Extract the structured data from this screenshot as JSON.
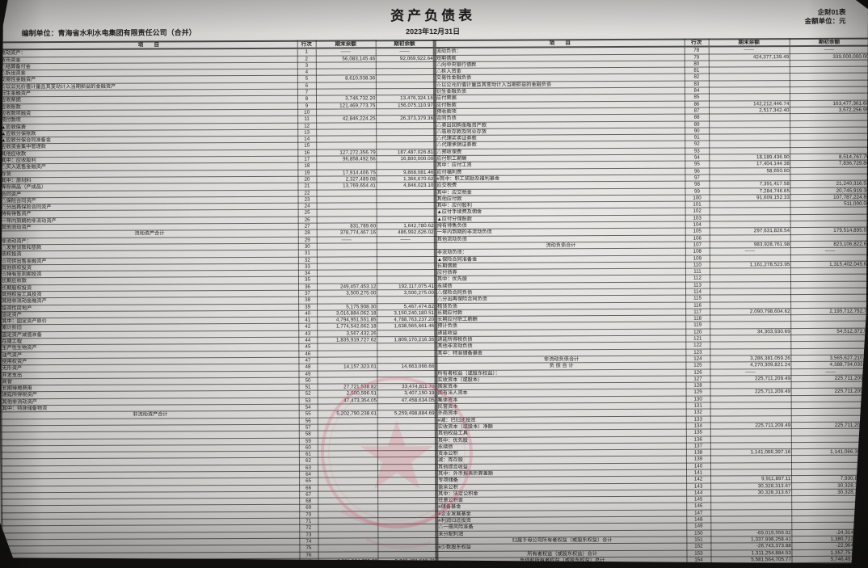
{
  "header": {
    "title": "资产负债表",
    "form_no": "企财01表",
    "unit_note": "金额单位：元",
    "prepared_by": "编制单位：青海省水利水电集团有限责任公司（合并）",
    "report_date": "2023年12月31日"
  },
  "columns": {
    "item": "项　　目",
    "line": "行次",
    "end": "期末余额",
    "begin": "期初余额"
  },
  "seal": {
    "name": "company-seal",
    "color": "#c43a5a"
  },
  "left_rows": [
    {
      "n": "1",
      "t": "流动资产：",
      "i": 0,
      "e": "——",
      "b": "——"
    },
    {
      "n": "2",
      "t": "货币资金",
      "i": 2,
      "e": "56,083,145.46",
      "b": "92,069,922.64"
    },
    {
      "n": "3",
      "t": "△结算备付金",
      "i": 1,
      "e": "",
      "b": ""
    },
    {
      "n": "4",
      "t": "△拆出资金",
      "i": 1,
      "e": "",
      "b": ""
    },
    {
      "n": "5",
      "t": "交易性金融资产",
      "i": 2,
      "e": "8,610,038.36",
      "b": ""
    },
    {
      "n": "6",
      "t": "☆以公允价值计量且其变动计入当期损益的金融资产",
      "i": 1,
      "e": "",
      "b": ""
    },
    {
      "n": "7",
      "t": "衍生金融资产",
      "i": 2,
      "e": "",
      "b": ""
    },
    {
      "n": "8",
      "t": "应收票据",
      "i": 2,
      "e": "3,746,732.20",
      "b": "13,476,324.16"
    },
    {
      "n": "9",
      "t": "应收账款",
      "i": 2,
      "e": "121,469,773.75",
      "b": "156,075,110.97"
    },
    {
      "n": "10",
      "t": "应收款项融资",
      "i": 2,
      "e": "",
      "b": ""
    },
    {
      "n": "11",
      "t": "预付款项",
      "i": 2,
      "e": "42,846,224.25",
      "b": "26,373,379.36"
    },
    {
      "n": "12",
      "t": "▲应收保费",
      "i": 1,
      "e": "",
      "b": ""
    },
    {
      "n": "13",
      "t": "▲应收分保账款",
      "i": 1,
      "e": "",
      "b": ""
    },
    {
      "n": "14",
      "t": "▲应收分保合同准备金",
      "i": 1,
      "e": "",
      "b": ""
    },
    {
      "n": "15",
      "t": "应收资金集中管理款",
      "i": 2,
      "e": "",
      "b": ""
    },
    {
      "n": "16",
      "t": "其他应收款",
      "i": 2,
      "e": "127,272,356.79",
      "b": "187,487,026.81"
    },
    {
      "n": "17",
      "t": "其中：应收股利",
      "i": 3,
      "e": "96,858,492.56",
      "b": "16,800,000.00"
    },
    {
      "n": "18",
      "t": "△买入返售金融资产",
      "i": 1,
      "e": "",
      "b": ""
    },
    {
      "n": "19",
      "t": "存货",
      "i": 2,
      "e": "17,914,406.75",
      "b": "9,868,081.46"
    },
    {
      "n": "20",
      "t": "其中：原材料",
      "i": 3,
      "e": "2,327,489.08",
      "b": "1,366,670.62"
    },
    {
      "n": "21",
      "t": "库存商品（产成品）",
      "i": 4,
      "e": "13,769,654.41",
      "b": "4,846,023.10"
    },
    {
      "n": "22",
      "t": "合同资产",
      "i": 2,
      "e": "",
      "b": ""
    },
    {
      "n": "23",
      "t": "△保险合同资产",
      "i": 1,
      "e": "",
      "b": ""
    },
    {
      "n": "24",
      "t": "△分出再保险合同资产",
      "i": 1,
      "e": "",
      "b": ""
    },
    {
      "n": "25",
      "t": "持有待售资产",
      "i": 2,
      "e": "",
      "b": ""
    },
    {
      "n": "26",
      "t": "一年内到期的非流动资产",
      "i": 2,
      "e": "",
      "b": ""
    },
    {
      "n": "27",
      "t": "其他流动资产",
      "i": 2,
      "e": "831,789.60",
      "b": "1,642,780.62"
    },
    {
      "n": "28",
      "t": "流动资产合计",
      "i": "c",
      "e": "378,774,467.16",
      "b": "486,992,626.02"
    },
    {
      "n": "29",
      "t": "非流动资产：",
      "i": 0,
      "e": "——",
      "b": "——"
    },
    {
      "n": "30",
      "t": "△发放贷款和垫款",
      "i": 1,
      "e": "",
      "b": ""
    },
    {
      "n": "31",
      "t": "债权投资",
      "i": 2,
      "e": "",
      "b": ""
    },
    {
      "n": "32",
      "t": "☆可供出售金融资产",
      "i": 1,
      "e": "",
      "b": ""
    },
    {
      "n": "33",
      "t": "其他债权投资",
      "i": 2,
      "e": "",
      "b": ""
    },
    {
      "n": "34",
      "t": "☆持有至到期投资",
      "i": 1,
      "e": "",
      "b": ""
    },
    {
      "n": "35",
      "t": "长期应收款",
      "i": 2,
      "e": "",
      "b": ""
    },
    {
      "n": "36",
      "t": "长期股权投资",
      "i": 2,
      "e": "249,457,453.12",
      "b": "192,117,075.41"
    },
    {
      "n": "37",
      "t": "其他权益工具投资",
      "i": 2,
      "e": "3,500,275.00",
      "b": "3,500,275.00"
    },
    {
      "n": "38",
      "t": "其他非流动金融资产",
      "i": 2,
      "e": "",
      "b": ""
    },
    {
      "n": "39",
      "t": "投资性房地产",
      "i": 2,
      "e": "5,175,908.30",
      "b": "5,467,474.82"
    },
    {
      "n": "40",
      "t": "固定资产",
      "i": 2,
      "e": "3,016,884,062.18",
      "b": "3,150,240,180.51"
    },
    {
      "n": "41",
      "t": "其中：固定资产原价",
      "i": 3,
      "e": "4,794,951,551.85",
      "b": "4,788,763,237.20"
    },
    {
      "n": "42",
      "t": "累计折旧",
      "i": 4,
      "e": "1,774,542,662.18",
      "b": "1,638,565,661.46"
    },
    {
      "n": "43",
      "t": "固定资产减值准备",
      "i": 4,
      "e": "3,567,432.26",
      "b": ""
    },
    {
      "n": "44",
      "t": "在建工程",
      "i": 2,
      "e": "1,835,919,727.62",
      "b": "1,809,170,216.35"
    },
    {
      "n": "45",
      "t": "生产性生物资产",
      "i": 2,
      "e": "",
      "b": ""
    },
    {
      "n": "46",
      "t": "油气资产",
      "i": 2,
      "e": "",
      "b": ""
    },
    {
      "n": "47",
      "t": "使用权资产",
      "i": 2,
      "e": "",
      "b": ""
    },
    {
      "n": "48",
      "t": "无形资产",
      "i": 2,
      "e": "14,157,323.01",
      "b": "14,663,066.66"
    },
    {
      "n": "49",
      "t": "开发支出",
      "i": 2,
      "e": "",
      "b": ""
    },
    {
      "n": "50",
      "t": "商誉",
      "i": 2,
      "e": "",
      "b": ""
    },
    {
      "n": "51",
      "t": "长期待摊费用",
      "i": 2,
      "e": "27,721,538.82",
      "b": "33,474,811.70"
    },
    {
      "n": "52",
      "t": "递延所得税资产",
      "i": 2,
      "e": "2,500,596.51",
      "b": "3,407,150.19"
    },
    {
      "n": "53",
      "t": "其他非流动资产",
      "i": 2,
      "e": "47,473,354.05",
      "b": "47,458,634.05"
    },
    {
      "n": "54",
      "t": "其中：特准储备物资",
      "i": 3,
      "e": "",
      "b": ""
    },
    {
      "n": "55",
      "t": "非流动资产合计",
      "i": "c",
      "e": "5,202,790,238.61",
      "b": "5,259,498,884.69"
    },
    {
      "n": "56",
      "t": "",
      "i": 2,
      "e": "",
      "b": ""
    },
    {
      "n": "57",
      "t": "",
      "i": 2,
      "e": "",
      "b": ""
    },
    {
      "n": "58",
      "t": "",
      "i": 2,
      "e": "",
      "b": ""
    },
    {
      "n": "59",
      "t": "",
      "i": 2,
      "e": "",
      "b": ""
    },
    {
      "n": "60",
      "t": "",
      "i": 2,
      "e": "",
      "b": ""
    },
    {
      "n": "61",
      "t": "",
      "i": 2,
      "e": "",
      "b": ""
    },
    {
      "n": "62",
      "t": "",
      "i": 2,
      "e": "",
      "b": ""
    },
    {
      "n": "63",
      "t": "",
      "i": 2,
      "e": "",
      "b": ""
    },
    {
      "n": "64",
      "t": "",
      "i": 2,
      "e": "",
      "b": ""
    },
    {
      "n": "65",
      "t": "",
      "i": 2,
      "e": "",
      "b": ""
    },
    {
      "n": "66",
      "t": "",
      "i": 2,
      "e": "",
      "b": ""
    },
    {
      "n": "67",
      "t": "",
      "i": 2,
      "e": "",
      "b": ""
    },
    {
      "n": "68",
      "t": "",
      "i": 2,
      "e": "",
      "b": ""
    },
    {
      "n": "69",
      "t": "",
      "i": 2,
      "e": "",
      "b": ""
    },
    {
      "n": "70",
      "t": "",
      "i": 2,
      "e": "",
      "b": ""
    },
    {
      "n": "71",
      "t": "",
      "i": 2,
      "e": "",
      "b": ""
    },
    {
      "n": "72",
      "t": "",
      "i": 2,
      "e": "",
      "b": ""
    },
    {
      "n": "73",
      "t": "",
      "i": 2,
      "e": "",
      "b": ""
    },
    {
      "n": "74",
      "t": "",
      "i": 2,
      "e": "",
      "b": ""
    },
    {
      "n": "75",
      "t": "",
      "i": 2,
      "e": "",
      "b": ""
    },
    {
      "n": "76",
      "t": "",
      "i": 2,
      "e": "",
      "b": ""
    },
    {
      "n": "77",
      "t": "资 产 总 计",
      "i": "c",
      "e": "5,581,564,705.77",
      "b": "5,746,491,510.71"
    }
  ],
  "right_rows": [
    {
      "n": "78",
      "t": "流动负债：",
      "i": 0,
      "e": "——",
      "b": "——"
    },
    {
      "n": "79",
      "t": "短期借款",
      "i": 2,
      "e": "424,377,139.49",
      "b": "339,000,000.00"
    },
    {
      "n": "80",
      "t": "△向中央银行借款",
      "i": 1,
      "e": "",
      "b": ""
    },
    {
      "n": "81",
      "t": "△拆入资金",
      "i": 1,
      "e": "",
      "b": ""
    },
    {
      "n": "82",
      "t": "交易性金融负债",
      "i": 2,
      "e": "",
      "b": ""
    },
    {
      "n": "83",
      "t": "☆以公允价值计量且其变动计入当期损益的金融负债",
      "i": 1,
      "e": "",
      "b": ""
    },
    {
      "n": "84",
      "t": "衍生金融负债",
      "i": 2,
      "e": "",
      "b": ""
    },
    {
      "n": "85",
      "t": "应付票据",
      "i": 2,
      "e": "",
      "b": ""
    },
    {
      "n": "86",
      "t": "应付账款",
      "i": 2,
      "e": "142,212,446.74",
      "b": "163,477,361.60"
    },
    {
      "n": "87",
      "t": "预收款项",
      "i": 2,
      "e": "2,517,342.40",
      "b": "3,572,256.95"
    },
    {
      "n": "88",
      "t": "合同负债",
      "i": 2,
      "e": "",
      "b": ""
    },
    {
      "n": "89",
      "t": "△卖出回购金融资产款",
      "i": 1,
      "e": "",
      "b": ""
    },
    {
      "n": "90",
      "t": "△吸收存款及同业存放",
      "i": 1,
      "e": "",
      "b": ""
    },
    {
      "n": "91",
      "t": "△代理买卖证券款",
      "i": 1,
      "e": "",
      "b": ""
    },
    {
      "n": "92",
      "t": "△代理承销证券款",
      "i": 1,
      "e": "",
      "b": ""
    },
    {
      "n": "93",
      "t": "△预收保费",
      "i": 1,
      "e": "",
      "b": ""
    },
    {
      "n": "94",
      "t": "应付职工薪酬",
      "i": 2,
      "e": "18,189,436.90",
      "b": "8,514,767.70"
    },
    {
      "n": "95",
      "t": "其中：应付工资",
      "i": 3,
      "e": "17,404,144.38",
      "b": "7,836,729.86"
    },
    {
      "n": "96",
      "t": "应付福利费",
      "i": 4,
      "e": "58,650.00",
      "b": ""
    },
    {
      "n": "97",
      "t": "#其中：职工奖励及福利基金",
      "i": 4,
      "e": "",
      "b": ""
    },
    {
      "n": "98",
      "t": "应交税费",
      "i": 2,
      "e": "7,391,417.58",
      "b": "21,240,316.53"
    },
    {
      "n": "99",
      "t": "其中：应交税金",
      "i": 3,
      "e": "7,284,746.65",
      "b": "20,745,919.36"
    },
    {
      "n": "100",
      "t": "其他应付款",
      "i": 2,
      "e": "91,609,152.33",
      "b": "107,787,224.89"
    },
    {
      "n": "101",
      "t": "其中：应付股利",
      "i": 3,
      "e": "",
      "b": "511,000.00"
    },
    {
      "n": "102",
      "t": "▲应付手续费及佣金",
      "i": 1,
      "e": "",
      "b": ""
    },
    {
      "n": "103",
      "t": "▲应付分保账款",
      "i": 1,
      "e": "",
      "b": ""
    },
    {
      "n": "104",
      "t": "持有待售负债",
      "i": 2,
      "e": "",
      "b": ""
    },
    {
      "n": "105",
      "t": "一年内到期的非流动负债",
      "i": 2,
      "e": "297,631,826.54",
      "b": "179,514,895.02"
    },
    {
      "n": "106",
      "t": "其他流动负债",
      "i": 2,
      "e": "",
      "b": ""
    },
    {
      "n": "107",
      "t": "流动负债合计",
      "i": "c",
      "e": "983,928,761.98",
      "b": "823,106,822.69"
    },
    {
      "n": "108",
      "t": "非流动负债：",
      "i": 0,
      "e": "——",
      "b": "——"
    },
    {
      "n": "109",
      "t": "▲保险合同准备金",
      "i": 1,
      "e": "",
      "b": ""
    },
    {
      "n": "110",
      "t": "长期借款",
      "i": 2,
      "e": "1,161,278,523.95",
      "b": "1,315,402,045.64"
    },
    {
      "n": "111",
      "t": "应付债券",
      "i": 2,
      "e": "",
      "b": ""
    },
    {
      "n": "112",
      "t": "其中：优先股",
      "i": 3,
      "e": "",
      "b": ""
    },
    {
      "n": "113",
      "t": "永续债",
      "i": 4,
      "e": "",
      "b": ""
    },
    {
      "n": "114",
      "t": "△保险合同负债",
      "i": 1,
      "e": "",
      "b": ""
    },
    {
      "n": "115",
      "t": "△分出再保险合同负债",
      "i": 1,
      "e": "",
      "b": ""
    },
    {
      "n": "116",
      "t": "租赁负债",
      "i": 2,
      "e": "",
      "b": ""
    },
    {
      "n": "117",
      "t": "长期应付款",
      "i": 2,
      "e": "2,090,798,604.62",
      "b": "2,195,712,792.79"
    },
    {
      "n": "118",
      "t": "长期应付职工薪酬",
      "i": 2,
      "e": "",
      "b": ""
    },
    {
      "n": "119",
      "t": "预计负债",
      "i": 2,
      "e": "",
      "b": ""
    },
    {
      "n": "120",
      "t": "递延收益",
      "i": 2,
      "e": "34,303,930.69",
      "b": "54,512,372.53"
    },
    {
      "n": "121",
      "t": "递延所得税负债",
      "i": 2,
      "e": "",
      "b": ""
    },
    {
      "n": "122",
      "t": "其他非流动负债",
      "i": 2,
      "e": "",
      "b": ""
    },
    {
      "n": "123",
      "t": "其中：特准储备基金",
      "i": 3,
      "e": "",
      "b": ""
    },
    {
      "n": "124",
      "t": "非流动负债合计",
      "i": "c",
      "e": "3,286,381,059.26",
      "b": "3,565,627,210.96"
    },
    {
      "n": "125",
      "t": "负 债 合 计",
      "i": "c",
      "e": "4,270,309,821.24",
      "b": "4,388,734,033.65"
    },
    {
      "n": "126",
      "t": "所有者权益（或股东权益）：",
      "i": 0,
      "e": "——",
      "b": "——"
    },
    {
      "n": "127",
      "t": "实收资本（或股本）",
      "i": 2,
      "e": "225,711,209.49",
      "b": "225,711,209.49"
    },
    {
      "n": "128",
      "t": "国家资本",
      "i": 3,
      "e": "",
      "b": ""
    },
    {
      "n": "129",
      "t": "国有法人资本",
      "i": 3,
      "e": "225,711,209.49",
      "b": "225,711,209.49"
    },
    {
      "n": "130",
      "t": "集体资本",
      "i": 3,
      "e": "",
      "b": ""
    },
    {
      "n": "131",
      "t": "民营资本",
      "i": 3,
      "e": "",
      "b": ""
    },
    {
      "n": "132",
      "t": "外商资本",
      "i": 3,
      "e": "",
      "b": ""
    },
    {
      "n": "133",
      "t": "#减：已归还投资",
      "i": 2,
      "e": "",
      "b": ""
    },
    {
      "n": "134",
      "t": "实收资本（或股本）净额",
      "i": 2,
      "e": "225,711,209.49",
      "b": "225,711,209.49"
    },
    {
      "n": "135",
      "t": "其他权益工具",
      "i": 2,
      "e": "",
      "b": ""
    },
    {
      "n": "136",
      "t": "其中：优先股",
      "i": 3,
      "e": "",
      "b": ""
    },
    {
      "n": "137",
      "t": "永续债",
      "i": 4,
      "e": "",
      "b": ""
    },
    {
      "n": "138",
      "t": "资本公积",
      "i": 2,
      "e": "1,141,066,397.16",
      "b": "1,141,066,397.16"
    },
    {
      "n": "139",
      "t": "减：库存股",
      "i": 2,
      "e": "",
      "b": ""
    },
    {
      "n": "140",
      "t": "其他综合收益",
      "i": 2,
      "e": "",
      "b": ""
    },
    {
      "n": "141",
      "t": "其中：外币报表折算差额",
      "i": 3,
      "e": "",
      "b": ""
    },
    {
      "n": "142",
      "t": "专项储备",
      "i": 2,
      "e": "9,911,897.11",
      "b": "7,930,893.45"
    },
    {
      "n": "143",
      "t": "盈余公积",
      "i": 2,
      "e": "30,328,313.67",
      "b": "30,328,313.67"
    },
    {
      "n": "144",
      "t": "其中：法定公积金",
      "i": 3,
      "e": "30,328,313.67",
      "b": "30,328,313.67"
    },
    {
      "n": "145",
      "t": "任意公积金",
      "i": 4,
      "e": "",
      "b": ""
    },
    {
      "n": "146",
      "t": "#储备基金",
      "i": 4,
      "e": "",
      "b": ""
    },
    {
      "n": "147",
      "t": "#企业发展基金",
      "i": 4,
      "e": "",
      "b": ""
    },
    {
      "n": "148",
      "t": "#利润归还投资",
      "i": 4,
      "e": "",
      "b": ""
    },
    {
      "n": "149",
      "t": "△一般风险准备",
      "i": 1,
      "e": "",
      "b": ""
    },
    {
      "n": "150",
      "t": "未分配利润",
      "i": 2,
      "e": "-69,019,559.02",
      "b": "-24,314,793.20"
    },
    {
      "n": "151",
      "t": "归属于母公司所有者权益（或股东权益）合计",
      "i": "c",
      "e": "1,337,998,258.41",
      "b": "1,380,722,020.57"
    },
    {
      "n": "152",
      "t": "#少数股东权益",
      "i": 2,
      "e": "-26,743,373.88",
      "b": "-22,964,543.51"
    },
    {
      "n": "153",
      "t": "所有者权益（或股东权益）合计",
      "i": "c",
      "e": "1,311,254,884.53",
      "b": "1,357,757,477.06"
    },
    {
      "n": "154",
      "t": "负债和所有者权益（或股东权益）总计",
      "i": "c",
      "e": "5,581,564,705.77",
      "b": "5,746,491,510.71"
    }
  ]
}
